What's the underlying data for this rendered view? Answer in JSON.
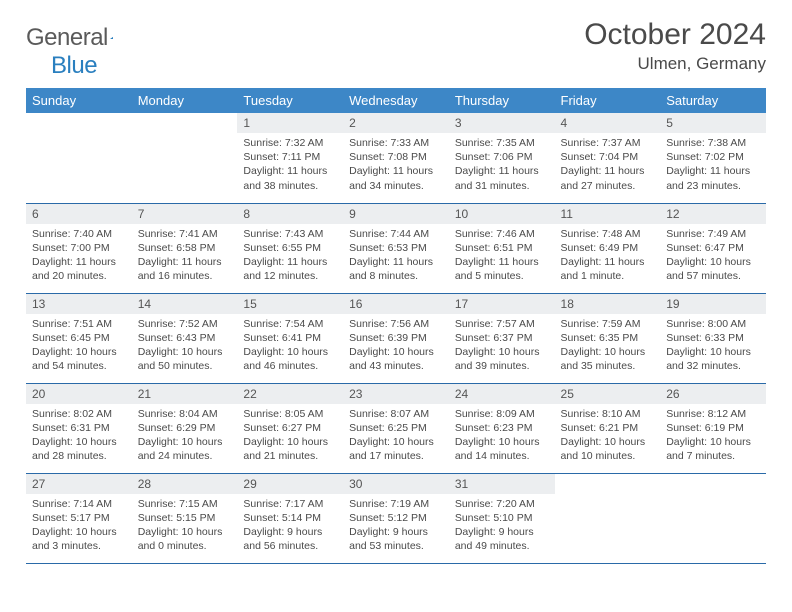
{
  "logo": {
    "word1": "General",
    "word2": "Blue"
  },
  "title": "October 2024",
  "location": "Ulmen, Germany",
  "colors": {
    "header_bg": "#3d87c7",
    "header_text": "#ffffff",
    "daynum_bg": "#eceef0",
    "border": "#2a6aa8",
    "text": "#4a4a4a",
    "logo_blue": "#2a7fbf"
  },
  "weekdays": [
    "Sunday",
    "Monday",
    "Tuesday",
    "Wednesday",
    "Thursday",
    "Friday",
    "Saturday"
  ],
  "weeks": [
    [
      null,
      null,
      {
        "n": "1",
        "sr": "7:32 AM",
        "ss": "7:11 PM",
        "dl": "11 hours and 38 minutes."
      },
      {
        "n": "2",
        "sr": "7:33 AM",
        "ss": "7:08 PM",
        "dl": "11 hours and 34 minutes."
      },
      {
        "n": "3",
        "sr": "7:35 AM",
        "ss": "7:06 PM",
        "dl": "11 hours and 31 minutes."
      },
      {
        "n": "4",
        "sr": "7:37 AM",
        "ss": "7:04 PM",
        "dl": "11 hours and 27 minutes."
      },
      {
        "n": "5",
        "sr": "7:38 AM",
        "ss": "7:02 PM",
        "dl": "11 hours and 23 minutes."
      }
    ],
    [
      {
        "n": "6",
        "sr": "7:40 AM",
        "ss": "7:00 PM",
        "dl": "11 hours and 20 minutes."
      },
      {
        "n": "7",
        "sr": "7:41 AM",
        "ss": "6:58 PM",
        "dl": "11 hours and 16 minutes."
      },
      {
        "n": "8",
        "sr": "7:43 AM",
        "ss": "6:55 PM",
        "dl": "11 hours and 12 minutes."
      },
      {
        "n": "9",
        "sr": "7:44 AM",
        "ss": "6:53 PM",
        "dl": "11 hours and 8 minutes."
      },
      {
        "n": "10",
        "sr": "7:46 AM",
        "ss": "6:51 PM",
        "dl": "11 hours and 5 minutes."
      },
      {
        "n": "11",
        "sr": "7:48 AM",
        "ss": "6:49 PM",
        "dl": "11 hours and 1 minute."
      },
      {
        "n": "12",
        "sr": "7:49 AM",
        "ss": "6:47 PM",
        "dl": "10 hours and 57 minutes."
      }
    ],
    [
      {
        "n": "13",
        "sr": "7:51 AM",
        "ss": "6:45 PM",
        "dl": "10 hours and 54 minutes."
      },
      {
        "n": "14",
        "sr": "7:52 AM",
        "ss": "6:43 PM",
        "dl": "10 hours and 50 minutes."
      },
      {
        "n": "15",
        "sr": "7:54 AM",
        "ss": "6:41 PM",
        "dl": "10 hours and 46 minutes."
      },
      {
        "n": "16",
        "sr": "7:56 AM",
        "ss": "6:39 PM",
        "dl": "10 hours and 43 minutes."
      },
      {
        "n": "17",
        "sr": "7:57 AM",
        "ss": "6:37 PM",
        "dl": "10 hours and 39 minutes."
      },
      {
        "n": "18",
        "sr": "7:59 AM",
        "ss": "6:35 PM",
        "dl": "10 hours and 35 minutes."
      },
      {
        "n": "19",
        "sr": "8:00 AM",
        "ss": "6:33 PM",
        "dl": "10 hours and 32 minutes."
      }
    ],
    [
      {
        "n": "20",
        "sr": "8:02 AM",
        "ss": "6:31 PM",
        "dl": "10 hours and 28 minutes."
      },
      {
        "n": "21",
        "sr": "8:04 AM",
        "ss": "6:29 PM",
        "dl": "10 hours and 24 minutes."
      },
      {
        "n": "22",
        "sr": "8:05 AM",
        "ss": "6:27 PM",
        "dl": "10 hours and 21 minutes."
      },
      {
        "n": "23",
        "sr": "8:07 AM",
        "ss": "6:25 PM",
        "dl": "10 hours and 17 minutes."
      },
      {
        "n": "24",
        "sr": "8:09 AM",
        "ss": "6:23 PM",
        "dl": "10 hours and 14 minutes."
      },
      {
        "n": "25",
        "sr": "8:10 AM",
        "ss": "6:21 PM",
        "dl": "10 hours and 10 minutes."
      },
      {
        "n": "26",
        "sr": "8:12 AM",
        "ss": "6:19 PM",
        "dl": "10 hours and 7 minutes."
      }
    ],
    [
      {
        "n": "27",
        "sr": "7:14 AM",
        "ss": "5:17 PM",
        "dl": "10 hours and 3 minutes."
      },
      {
        "n": "28",
        "sr": "7:15 AM",
        "ss": "5:15 PM",
        "dl": "10 hours and 0 minutes."
      },
      {
        "n": "29",
        "sr": "7:17 AM",
        "ss": "5:14 PM",
        "dl": "9 hours and 56 minutes."
      },
      {
        "n": "30",
        "sr": "7:19 AM",
        "ss": "5:12 PM",
        "dl": "9 hours and 53 minutes."
      },
      {
        "n": "31",
        "sr": "7:20 AM",
        "ss": "5:10 PM",
        "dl": "9 hours and 49 minutes."
      },
      null,
      null
    ]
  ],
  "labels": {
    "sunrise": "Sunrise:",
    "sunset": "Sunset:",
    "daylight": "Daylight:"
  }
}
